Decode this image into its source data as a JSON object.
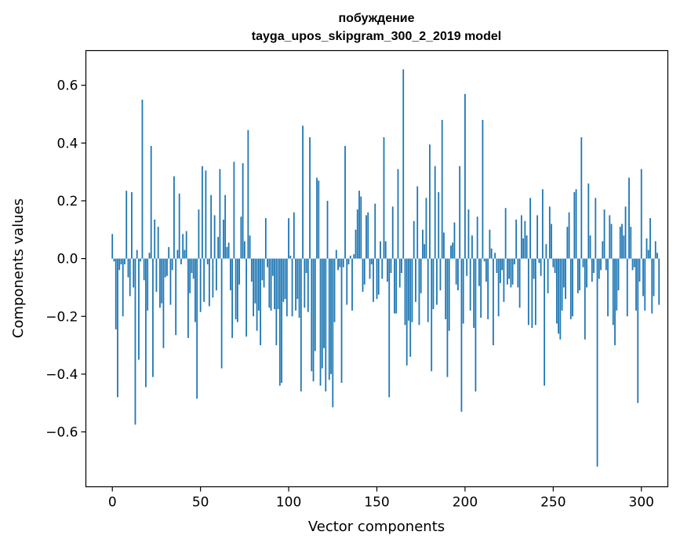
{
  "chart_data": {
    "type": "bar",
    "title": "побуждение",
    "subtitle": "tayga_upos_skipgram_300_2_2019 model",
    "xlabel": "Vector components",
    "ylabel": "Components values",
    "xlim": [
      -15,
      315
    ],
    "ylim": [
      -0.79,
      0.72
    ],
    "xticks": [
      0,
      50,
      100,
      150,
      200,
      250,
      300
    ],
    "xtick_labels": [
      "0",
      "50",
      "100",
      "150",
      "200",
      "250",
      "300"
    ],
    "yticks": [
      -0.6,
      -0.4,
      -0.2,
      0.0,
      0.2,
      0.4,
      0.6
    ],
    "ytick_labels": [
      "−0.6",
      "−0.4",
      "−0.2",
      "0.0",
      "0.2",
      "0.4",
      "0.6"
    ],
    "grid": false,
    "bar_color": "#1f77b4",
    "x_start": 0,
    "values": [
      0.085,
      -0.01,
      -0.245,
      -0.48,
      -0.04,
      -0.02,
      -0.2,
      -0.02,
      0.235,
      -0.065,
      -0.13,
      0.23,
      -0.1,
      -0.575,
      0.03,
      -0.35,
      -0.01,
      0.55,
      -0.075,
      -0.445,
      -0.18,
      0.02,
      0.39,
      -0.41,
      0.135,
      -0.115,
      0.11,
      -0.17,
      -0.155,
      -0.31,
      -0.065,
      -0.06,
      0.04,
      -0.16,
      -0.04,
      0.285,
      -0.265,
      0.03,
      0.225,
      -0.02,
      0.085,
      0.03,
      0.095,
      -0.275,
      -0.12,
      -0.05,
      -0.07,
      -0.22,
      -0.485,
      0.17,
      -0.185,
      0.32,
      -0.15,
      0.305,
      -0.02,
      -0.165,
      0.22,
      -0.135,
      0.15,
      -0.11,
      0.075,
      0.31,
      -0.38,
      0.135,
      0.22,
      0.04,
      0.055,
      -0.11,
      -0.275,
      0.335,
      -0.21,
      -0.22,
      -0.09,
      0.145,
      0.33,
      0.06,
      -0.27,
      0.445,
      0.08,
      -0.08,
      -0.2,
      -0.155,
      -0.25,
      -0.18,
      -0.3,
      -0.075,
      -0.1,
      0.14,
      -0.03,
      -0.17,
      -0.18,
      -0.06,
      -0.175,
      -0.3,
      -0.175,
      -0.44,
      -0.43,
      -0.15,
      -0.14,
      -0.2,
      0.14,
      0.01,
      -0.2,
      0.16,
      -0.18,
      -0.14,
      -0.205,
      -0.46,
      0.46,
      -0.17,
      -0.05,
      -0.185,
      0.42,
      -0.39,
      -0.425,
      -0.32,
      0.28,
      0.27,
      -0.44,
      -0.38,
      -0.31,
      -0.46,
      0.2,
      -0.42,
      -0.4,
      -0.515,
      -0.22,
      0.03,
      -0.04,
      -0.03,
      -0.43,
      -0.03,
      0.39,
      -0.16,
      -0.02,
      0.01,
      -0.18,
      0.015,
      0.1,
      0.17,
      0.235,
      0.215,
      -0.115,
      -0.09,
      0.15,
      0.16,
      -0.07,
      -0.02,
      -0.15,
      0.19,
      -0.14,
      -0.125,
      0.06,
      -0.07,
      0.42,
      0.06,
      -0.08,
      -0.48,
      -0.05,
      0.18,
      -0.19,
      -0.19,
      0.31,
      -0.1,
      -0.05,
      0.655,
      -0.23,
      -0.37,
      -0.215,
      -0.34,
      -0.22,
      0.13,
      -0.15,
      0.25,
      -0.23,
      -0.12,
      0.1,
      0.05,
      0.21,
      -0.22,
      0.395,
      -0.39,
      -0.175,
      0.32,
      -0.16,
      0.23,
      -0.11,
      0.48,
      0.09,
      -0.21,
      -0.41,
      -0.25,
      0.045,
      0.055,
      0.125,
      -0.09,
      -0.11,
      0.32,
      -0.53,
      -0.225,
      0.57,
      -0.06,
      0.17,
      -0.18,
      0.08,
      -0.24,
      -0.46,
      0.145,
      -0.095,
      -0.205,
      0.48,
      -0.01,
      -0.08,
      -0.21,
      0.1,
      0.035,
      -0.3,
      0.02,
      -0.05,
      -0.2,
      -0.085,
      -0.04,
      -0.15,
      0.175,
      -0.09,
      -0.07,
      -0.1,
      -0.09,
      -0.02,
      0.135,
      -0.1,
      -0.17,
      0.15,
      0.07,
      0.13,
      0.08,
      -0.23,
      0.21,
      -0.24,
      -0.07,
      -0.23,
      0.15,
      -0.015,
      -0.06,
      0.24,
      -0.44,
      0.05,
      -0.12,
      0.18,
      0.12,
      -0.03,
      -0.05,
      -0.225,
      -0.26,
      -0.28,
      -0.18,
      -0.1,
      -0.14,
      0.11,
      0.16,
      -0.21,
      -0.2,
      0.23,
      0.24,
      -0.12,
      -0.11,
      0.42,
      -0.03,
      -0.28,
      -0.1,
      0.26,
      0.08,
      -0.08,
      -0.05,
      0.21,
      -0.72,
      -0.07,
      -0.04,
      0.06,
      0.17,
      -0.04,
      -0.2,
      0.15,
      0.12,
      -0.23,
      -0.3,
      -0.18,
      -0.11,
      0.11,
      0.12,
      0.08,
      0.18,
      -0.2,
      0.28,
      0.11,
      -0.04,
      -0.03,
      -0.18,
      -0.5,
      -0.08,
      0.31,
      -0.13,
      -0.18,
      0.07,
      0.03,
      0.14,
      -0.19,
      -0.13,
      0.06,
      0.02,
      -0.16
    ]
  }
}
